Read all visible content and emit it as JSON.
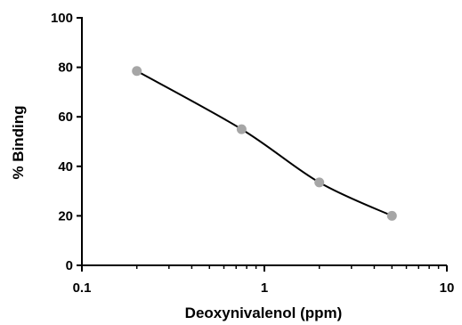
{
  "chart_data": {
    "type": "scatter",
    "xlabel": "Deoxynivalenol (ppm)",
    "ylabel": "% Binding",
    "xscale": "log",
    "xlim": [
      0.1,
      10
    ],
    "ylim": [
      0,
      100
    ],
    "x_ticks": [
      0.1,
      1,
      10
    ],
    "x_tick_labels": [
      "0.1",
      "1",
      "10"
    ],
    "y_ticks": [
      0,
      20,
      40,
      60,
      80,
      100
    ],
    "y_tick_labels": [
      "0",
      "20",
      "40",
      "60",
      "80",
      "100"
    ],
    "grid": false,
    "series": [
      {
        "x": [
          0.2,
          0.75,
          2,
          5
        ],
        "y": [
          78.5,
          55,
          33.5,
          20
        ],
        "fit_curve": true,
        "marker_color": "#a6a6a6",
        "line_color": "#000000"
      }
    ]
  }
}
